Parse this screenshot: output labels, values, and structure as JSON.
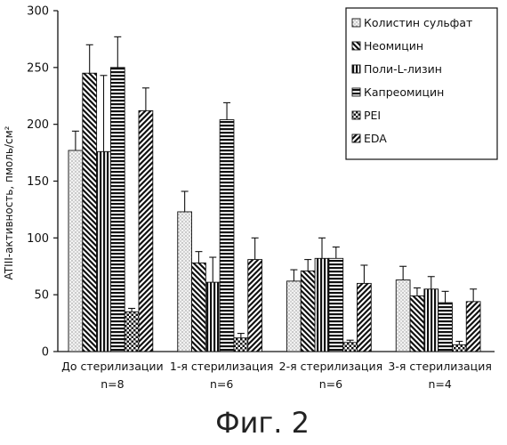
{
  "figure_caption": "Фиг. 2",
  "chart_data": {
    "type": "bar",
    "ylabel": "ATIII-активность, пмоль/см²",
    "xlabel": "",
    "ylim": [
      0,
      300
    ],
    "yticks": [
      0,
      50,
      100,
      150,
      200,
      250,
      300
    ],
    "categories": [
      [
        "До стерилизации",
        "n=8"
      ],
      [
        "1-я стерилизация",
        "n=6"
      ],
      [
        "2-я стерилизация",
        "n=6"
      ],
      [
        "3-я стерилизация",
        "n=4"
      ]
    ],
    "legend_position": "top-right",
    "series": [
      {
        "name": "Колистин сульфат",
        "pattern": "dots",
        "values": [
          177,
          123,
          62,
          63
        ],
        "errors": [
          17,
          18,
          10,
          12
        ]
      },
      {
        "name": "Неомицин",
        "pattern": "diag-back",
        "values": [
          245,
          78,
          71,
          49
        ],
        "errors": [
          25,
          10,
          10,
          7
        ]
      },
      {
        "name": "Поли-L-лизин",
        "pattern": "vertical",
        "values": [
          176,
          61,
          82,
          55
        ],
        "errors": [
          67,
          22,
          18,
          11
        ]
      },
      {
        "name": "Капреомицин",
        "pattern": "horizontal",
        "values": [
          250,
          204,
          82,
          43
        ],
        "errors": [
          27,
          15,
          10,
          10
        ]
      },
      {
        "name": "PEI",
        "pattern": "checker",
        "values": [
          35,
          12,
          8,
          6
        ],
        "errors": [
          3,
          4,
          2,
          3
        ]
      },
      {
        "name": "EDA",
        "pattern": "diag-fwd",
        "values": [
          212,
          81,
          60,
          44
        ],
        "errors": [
          20,
          19,
          16,
          11
        ]
      }
    ]
  }
}
